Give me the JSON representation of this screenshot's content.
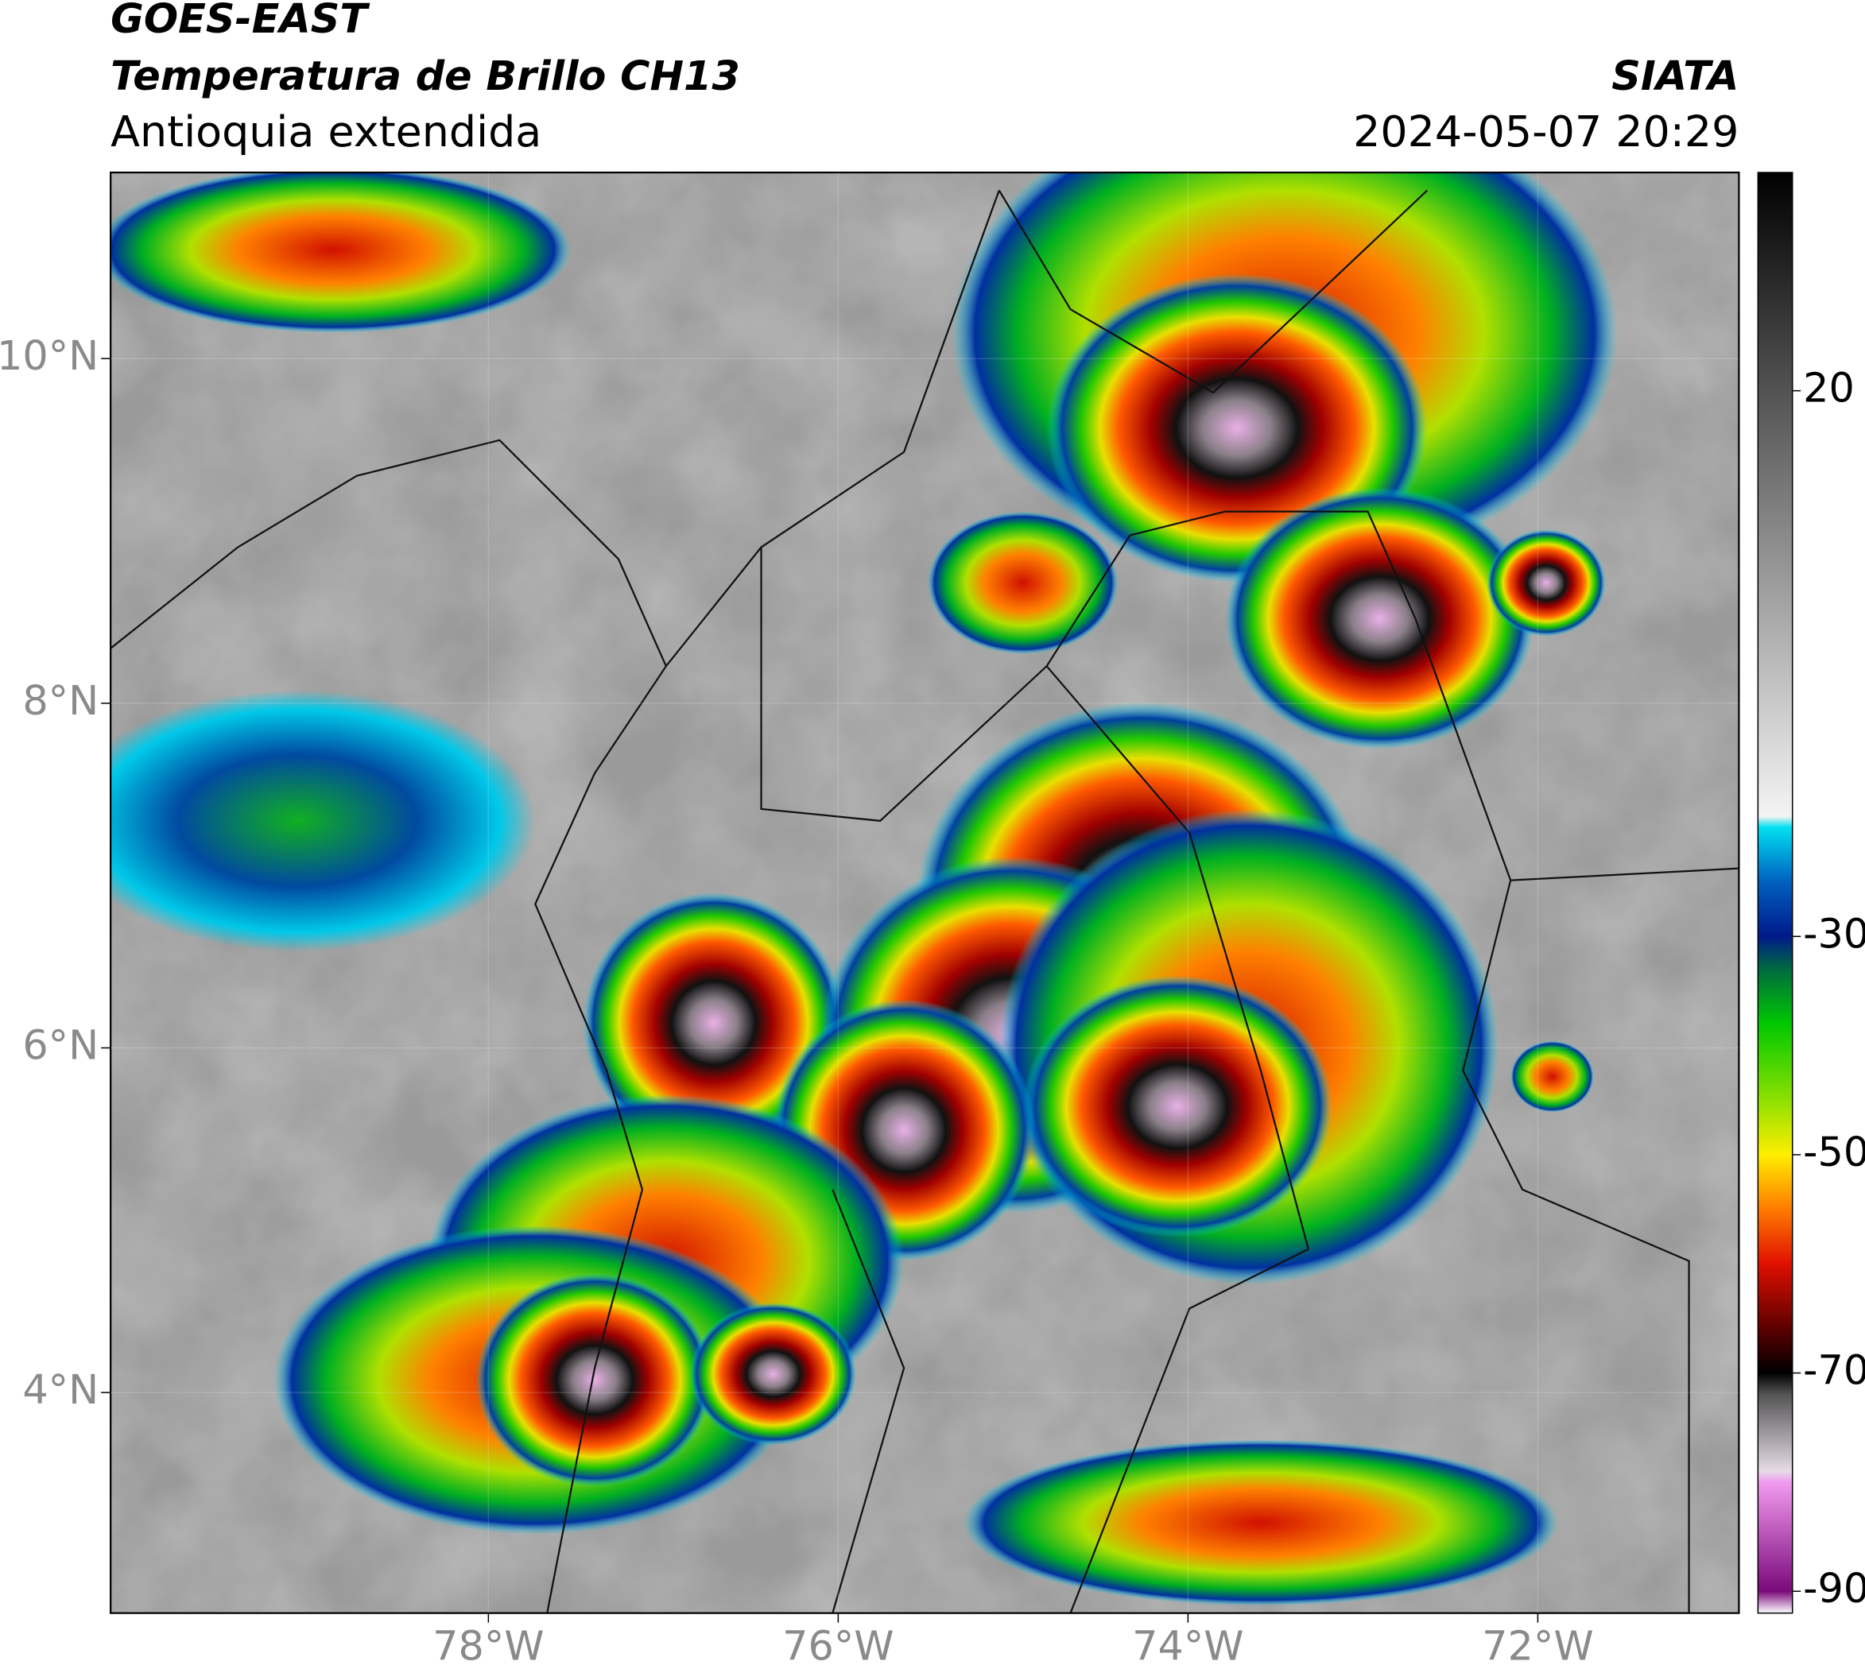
{
  "header": {
    "product": "GOES-EAST",
    "title": "Temperatura de Brillo CH13",
    "region": "Antioquia extendida",
    "source": "SIATA",
    "datetime": "2024-05-07 20:29"
  },
  "map": {
    "xlim": [
      -80.16,
      -70.85
    ],
    "ylim": [
      2.72,
      11.08
    ],
    "xticks": [
      {
        "value": -78,
        "label": "78°W"
      },
      {
        "value": -76,
        "label": "76°W"
      },
      {
        "value": -74,
        "label": "74°W"
      },
      {
        "value": -72,
        "label": "72°W"
      }
    ],
    "yticks": [
      {
        "value": 4,
        "label": "4°N"
      },
      {
        "value": 6,
        "label": "6°N"
      },
      {
        "value": 8,
        "label": "8°N"
      },
      {
        "value": 10,
        "label": "10°N"
      }
    ]
  },
  "colorbar": {
    "lim": [
      -92,
      40
    ],
    "ticks": [
      -90,
      -70,
      -50,
      -30,
      20
    ],
    "stops": [
      {
        "value": -92,
        "color": "#ffffff"
      },
      {
        "value": -90,
        "color": "#7a0a7a"
      },
      {
        "value": -80,
        "color": "#f29af0"
      },
      {
        "value": -79,
        "color": "#e6dce6"
      },
      {
        "value": -72,
        "color": "#555555"
      },
      {
        "value": -70,
        "color": "#000000"
      },
      {
        "value": -66,
        "color": "#5a0000"
      },
      {
        "value": -60,
        "color": "#e01000"
      },
      {
        "value": -55,
        "color": "#ff7a00"
      },
      {
        "value": -50,
        "color": "#ffee00"
      },
      {
        "value": -45,
        "color": "#8ee000"
      },
      {
        "value": -38,
        "color": "#00c800"
      },
      {
        "value": -33,
        "color": "#006a40"
      },
      {
        "value": -30,
        "color": "#001a8a"
      },
      {
        "value": -25,
        "color": "#0060c0"
      },
      {
        "value": -20,
        "color": "#00e0f0"
      },
      {
        "value": -19,
        "color": "#f4f4f4"
      },
      {
        "value": 40,
        "color": "#000000"
      }
    ]
  }
}
